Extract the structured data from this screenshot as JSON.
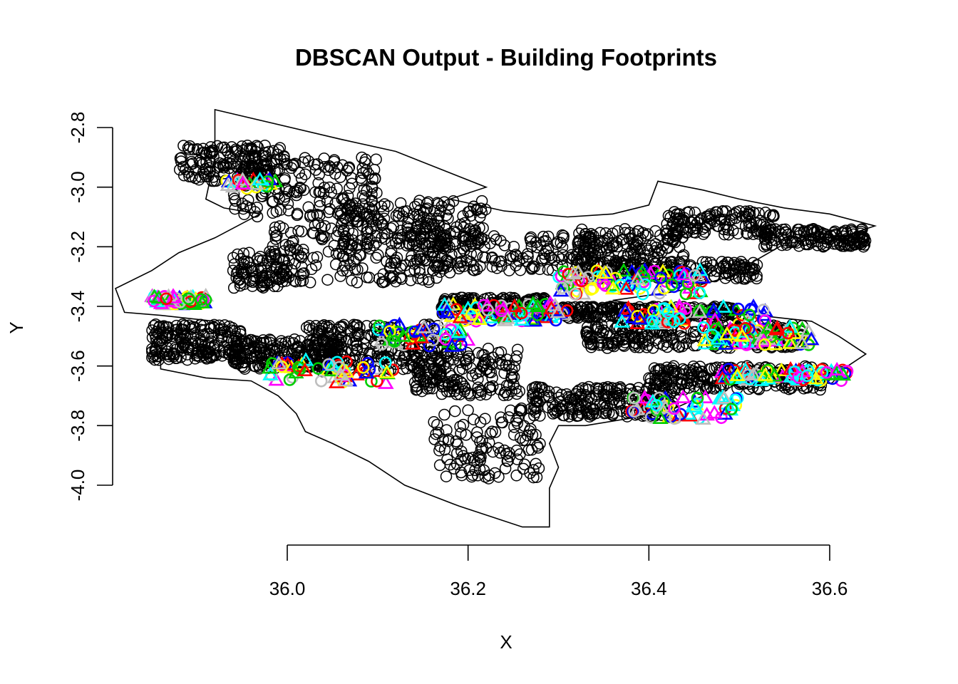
{
  "chart_data": {
    "type": "scatter",
    "title": "DBSCAN Output - Building Footprints",
    "xlabel": "X",
    "ylabel": "Y",
    "xlim": [
      35.81,
      36.66
    ],
    "ylim": [
      -4.18,
      -2.74
    ],
    "x_ticks": [
      36.0,
      36.2,
      36.4,
      36.6
    ],
    "x_tick_labels": [
      "36.0",
      "36.2",
      "36.4",
      "36.6"
    ],
    "y_ticks": [
      -4.0,
      -3.8,
      -3.6,
      -3.4,
      -3.2,
      -3.0,
      -2.8
    ],
    "y_tick_labels": [
      "-4.0",
      "-3.8",
      "-3.6",
      "-3.4",
      "-3.2",
      "-3.0",
      "-2.8"
    ],
    "grid": false,
    "legend": "none",
    "noise_marker": "open-circle",
    "cluster_colors": [
      "#ff0000",
      "#00cd00",
      "#0000ff",
      "#00ffff",
      "#ff00ff",
      "#ffff00",
      "#bebebe"
    ],
    "boundary": [
      [
        35.92,
        -2.74
      ],
      [
        36.06,
        -2.84
      ],
      [
        36.12,
        -2.88
      ],
      [
        36.17,
        -2.94
      ],
      [
        36.22,
        -3.0
      ],
      [
        36.18,
        -3.04
      ],
      [
        36.24,
        -3.08
      ],
      [
        36.31,
        -3.1
      ],
      [
        36.36,
        -3.09
      ],
      [
        36.4,
        -3.06
      ],
      [
        36.41,
        -2.98
      ],
      [
        36.46,
        -3.01
      ],
      [
        36.5,
        -3.04
      ],
      [
        36.55,
        -3.07
      ],
      [
        36.6,
        -3.09
      ],
      [
        36.65,
        -3.13
      ],
      [
        36.62,
        -3.16
      ],
      [
        36.55,
        -3.19
      ],
      [
        36.51,
        -3.26
      ],
      [
        36.49,
        -3.3
      ],
      [
        36.43,
        -3.35
      ],
      [
        36.36,
        -3.38
      ],
      [
        36.4,
        -3.4
      ],
      [
        36.46,
        -3.42
      ],
      [
        36.52,
        -3.43
      ],
      [
        36.58,
        -3.45
      ],
      [
        36.61,
        -3.5
      ],
      [
        36.64,
        -3.56
      ],
      [
        36.62,
        -3.6
      ],
      [
        36.57,
        -3.62
      ],
      [
        36.51,
        -3.63
      ],
      [
        36.47,
        -3.65
      ],
      [
        36.46,
        -3.7
      ],
      [
        36.43,
        -3.74
      ],
      [
        36.39,
        -3.77
      ],
      [
        36.33,
        -3.8
      ],
      [
        36.3,
        -3.8
      ],
      [
        36.29,
        -3.86
      ],
      [
        36.3,
        -3.94
      ],
      [
        36.29,
        -4.01
      ],
      [
        36.29,
        -4.14
      ],
      [
        36.26,
        -4.14
      ],
      [
        36.19,
        -4.07
      ],
      [
        36.13,
        -4.0
      ],
      [
        36.09,
        -3.92
      ],
      [
        36.05,
        -3.86
      ],
      [
        36.02,
        -3.82
      ],
      [
        36.01,
        -3.76
      ],
      [
        35.99,
        -3.7
      ],
      [
        35.96,
        -3.65
      ],
      [
        35.91,
        -3.64
      ],
      [
        35.86,
        -3.61
      ],
      [
        35.86,
        -3.55
      ],
      [
        35.88,
        -3.49
      ],
      [
        35.92,
        -3.45
      ],
      [
        35.86,
        -3.43
      ],
      [
        35.82,
        -3.42
      ],
      [
        35.81,
        -3.34
      ],
      [
        35.85,
        -3.28
      ],
      [
        35.88,
        -3.22
      ],
      [
        35.92,
        -3.17
      ],
      [
        35.97,
        -3.09
      ],
      [
        35.93,
        -3.07
      ],
      [
        35.91,
        -3.04
      ],
      [
        35.92,
        -2.9
      ],
      [
        35.92,
        -2.74
      ]
    ],
    "noise_regions": [
      [
        35.94,
        -2.92,
        0.06,
        0.06,
        160
      ],
      [
        36.02,
        -3.0,
        0.08,
        0.1,
        160
      ],
      [
        36.14,
        -3.12,
        0.08,
        0.08,
        180
      ],
      [
        36.08,
        -3.22,
        0.1,
        0.1,
        200
      ],
      [
        36.24,
        -3.22,
        0.1,
        0.06,
        160
      ],
      [
        36.38,
        -3.2,
        0.06,
        0.06,
        140
      ],
      [
        36.48,
        -3.12,
        0.06,
        0.04,
        120
      ],
      [
        36.58,
        -3.17,
        0.06,
        0.03,
        140
      ],
      [
        36.23,
        -3.4,
        0.06,
        0.03,
        200
      ],
      [
        36.4,
        -3.42,
        0.1,
        0.02,
        220
      ],
      [
        36.42,
        -3.28,
        0.1,
        0.03,
        200
      ],
      [
        36.45,
        -3.5,
        0.12,
        0.04,
        260
      ],
      [
        36.5,
        -3.64,
        0.1,
        0.04,
        240
      ],
      [
        36.35,
        -3.72,
        0.08,
        0.05,
        220
      ],
      [
        35.9,
        -3.52,
        0.05,
        0.06,
        200
      ],
      [
        36.0,
        -3.56,
        0.06,
        0.05,
        220
      ],
      [
        36.1,
        -3.54,
        0.08,
        0.08,
        240
      ],
      [
        36.2,
        -3.62,
        0.06,
        0.08,
        160
      ],
      [
        36.22,
        -3.86,
        0.06,
        0.12,
        120
      ],
      [
        35.97,
        -3.28,
        0.03,
        0.06,
        90
      ]
    ],
    "cluster_regions": [
      [
        35.88,
        -3.38,
        0.03,
        0.015,
        70
      ],
      [
        35.96,
        -2.99,
        0.03,
        0.015,
        30
      ],
      [
        36.24,
        -3.42,
        0.07,
        0.03,
        90
      ],
      [
        36.38,
        -3.32,
        0.08,
        0.04,
        100
      ],
      [
        36.45,
        -3.43,
        0.08,
        0.03,
        70
      ],
      [
        36.52,
        -3.5,
        0.06,
        0.03,
        70
      ],
      [
        36.55,
        -3.63,
        0.07,
        0.02,
        80
      ],
      [
        36.44,
        -3.74,
        0.06,
        0.04,
        60
      ],
      [
        36.05,
        -3.62,
        0.07,
        0.04,
        60
      ],
      [
        36.15,
        -3.5,
        0.05,
        0.04,
        50
      ]
    ]
  }
}
